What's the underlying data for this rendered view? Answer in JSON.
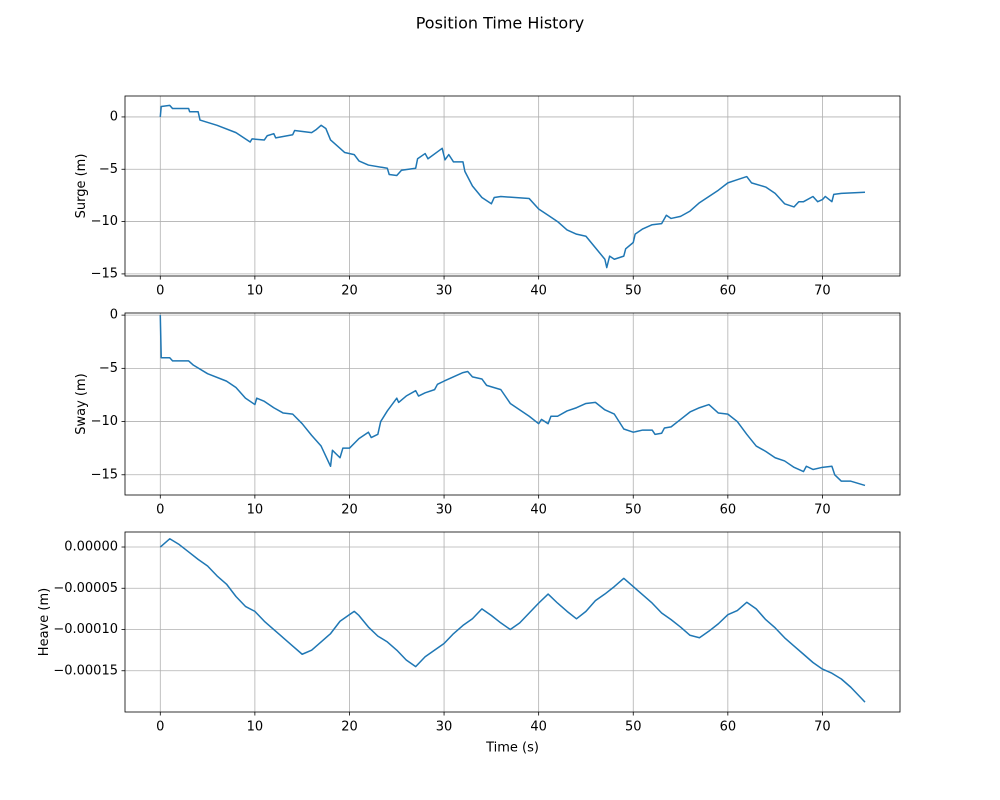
{
  "title": "Position Time History",
  "chart_data": [
    {
      "type": "line",
      "ylabel": "Surge (m)",
      "color": "#1f77b4",
      "grid": true,
      "xlim": [
        -3.73,
        78.2
      ],
      "ylim": [
        -15.2,
        2.0
      ],
      "xticks": [
        0,
        10,
        20,
        30,
        40,
        50,
        60,
        70
      ],
      "yticks": [
        0,
        {
          "value": -5,
          "label": "−5"
        },
        {
          "value": -10,
          "label": "−10"
        },
        {
          "value": -15,
          "label": "−15"
        }
      ],
      "x": [
        0,
        0.1,
        1,
        1.3,
        3,
        3.1,
        4,
        4.2,
        6,
        8,
        9.5,
        9.7,
        11,
        11.3,
        12,
        12.2,
        14,
        14.2,
        16,
        16.5,
        17,
        17.5,
        18,
        19,
        19.5,
        20.5,
        21,
        22,
        24,
        24.2,
        25,
        25.5,
        27,
        27.2,
        28,
        28.3,
        29.5,
        29.8,
        30.1,
        30.5,
        31,
        32,
        32.2,
        33,
        34,
        35,
        35.3,
        36,
        39,
        40,
        41,
        42,
        43,
        44,
        45,
        46,
        47,
        47.2,
        47.5,
        48,
        49,
        49.2,
        50,
        50.2,
        51,
        52,
        53,
        53.5,
        54,
        55,
        56,
        57,
        58,
        59,
        60,
        61,
        62,
        62.5,
        64,
        65,
        66,
        67,
        67.5,
        68,
        69,
        69.5,
        70,
        70.3,
        71,
        71.2,
        72,
        74.5
      ],
      "values": [
        0,
        1,
        1.1,
        0.8,
        0.8,
        0.5,
        0.5,
        -0.3,
        -0.8,
        -1.5,
        -2.4,
        -2.1,
        -2.2,
        -1.8,
        -1.6,
        -2.0,
        -1.7,
        -1.3,
        -1.5,
        -1.2,
        -0.8,
        -1.1,
        -2.2,
        -3.0,
        -3.4,
        -3.6,
        -4.2,
        -4.6,
        -4.9,
        -5.5,
        -5.6,
        -5.1,
        -4.9,
        -4.0,
        -3.5,
        -4.0,
        -3.2,
        -3.0,
        -4.1,
        -3.6,
        -4.3,
        -4.3,
        -5.2,
        -6.6,
        -7.7,
        -8.3,
        -7.7,
        -7.6,
        -7.8,
        -8.8,
        -9.4,
        -10.0,
        -10.8,
        -11.2,
        -11.4,
        -12.5,
        -13.6,
        -14.4,
        -13.3,
        -13.6,
        -13.3,
        -12.6,
        -12.0,
        -11.2,
        -10.7,
        -10.3,
        -10.2,
        -9.4,
        -9.7,
        -9.5,
        -9.0,
        -8.2,
        -7.6,
        -7.0,
        -6.3,
        -6.0,
        -5.7,
        -6.3,
        -6.7,
        -7.3,
        -8.3,
        -8.6,
        -8.1,
        -8.1,
        -7.6,
        -8.1,
        -7.9,
        -7.6,
        -8.1,
        -7.4,
        -7.3,
        -7.2
      ]
    },
    {
      "type": "line",
      "ylabel": "Sway (m)",
      "color": "#1f77b4",
      "grid": true,
      "xlim": [
        -3.73,
        78.2
      ],
      "ylim": [
        -16.9,
        0.2
      ],
      "xticks": [
        0,
        10,
        20,
        30,
        40,
        50,
        60,
        70
      ],
      "yticks": [
        0,
        {
          "value": -5,
          "label": "−5"
        },
        {
          "value": -10,
          "label": "−10"
        },
        {
          "value": -15,
          "label": "−15"
        }
      ],
      "x": [
        0,
        0.1,
        1,
        1.3,
        3,
        3.5,
        5,
        7,
        8,
        9,
        10,
        10.2,
        11,
        12,
        13,
        14,
        15,
        16,
        17,
        18,
        18.2,
        19,
        19.3,
        20,
        21,
        22,
        22.3,
        23,
        23.3,
        24,
        25,
        25.2,
        26,
        27,
        27.3,
        28,
        29,
        29.3,
        30,
        31,
        32,
        32.5,
        33,
        34,
        34.5,
        36,
        37,
        38,
        39,
        40,
        40.3,
        41,
        41.3,
        42,
        43,
        44,
        45,
        46,
        47,
        48,
        49,
        50,
        51,
        52,
        52.3,
        53,
        53.3,
        54,
        55,
        56,
        57,
        58,
        59,
        60,
        61,
        62,
        63,
        64,
        65,
        66,
        67,
        68,
        68.3,
        69,
        70,
        71,
        71.3,
        72,
        73,
        74.5
      ],
      "values": [
        0,
        -4.0,
        -4.0,
        -4.3,
        -4.3,
        -4.7,
        -5.5,
        -6.2,
        -6.8,
        -7.8,
        -8.4,
        -7.8,
        -8.1,
        -8.7,
        -9.2,
        -9.3,
        -10.2,
        -11.3,
        -12.3,
        -14.2,
        -12.7,
        -13.4,
        -12.5,
        -12.5,
        -11.6,
        -11.0,
        -11.5,
        -11.2,
        -10.0,
        -9.0,
        -7.8,
        -8.2,
        -7.6,
        -7.1,
        -7.6,
        -7.3,
        -7.0,
        -6.5,
        -6.2,
        -5.8,
        -5.4,
        -5.3,
        -5.8,
        -6.0,
        -6.6,
        -7.0,
        -8.3,
        -8.9,
        -9.5,
        -10.2,
        -9.8,
        -10.2,
        -9.5,
        -9.5,
        -9.0,
        -8.7,
        -8.3,
        -8.2,
        -8.9,
        -9.3,
        -10.7,
        -11.0,
        -10.8,
        -10.8,
        -11.2,
        -11.1,
        -10.6,
        -10.5,
        -9.8,
        -9.1,
        -8.7,
        -8.4,
        -9.2,
        -9.3,
        -10.0,
        -11.2,
        -12.3,
        -12.8,
        -13.4,
        -13.7,
        -14.3,
        -14.7,
        -14.2,
        -14.5,
        -14.3,
        -14.2,
        -15.0,
        -15.6,
        -15.6,
        -16.0
      ]
    },
    {
      "type": "line",
      "ylabel": "Heave (m)",
      "xlabel": "Time (s)",
      "color": "#1f77b4",
      "grid": true,
      "xlim": [
        -3.73,
        78.2
      ],
      "ylim": [
        -0.0002,
        1.82e-05
      ],
      "xticks": [
        0,
        10,
        20,
        30,
        40,
        50,
        60,
        70
      ],
      "yticks": [
        {
          "value": 0,
          "label": "0.00000"
        },
        {
          "value": -5e-05,
          "label": "−0.00005"
        },
        {
          "value": -0.0001,
          "label": "−0.00010"
        },
        {
          "value": -0.00015,
          "label": "−0.00015"
        }
      ],
      "x": [
        0,
        1,
        2,
        3,
        4,
        5,
        6,
        7,
        8,
        9,
        10,
        11,
        12,
        13,
        14,
        15,
        16,
        17,
        18,
        19,
        20,
        20.5,
        21,
        22,
        23,
        24,
        25,
        26,
        27,
        28,
        29,
        30,
        31,
        32,
        33,
        34,
        35,
        36,
        37,
        38,
        39,
        40,
        41,
        42,
        43,
        44,
        45,
        46,
        47,
        48,
        49,
        50,
        51,
        52,
        53,
        54,
        55,
        56,
        57,
        58,
        59,
        60,
        61,
        62,
        63,
        64,
        65,
        66,
        67,
        68,
        69,
        70,
        71,
        72,
        73,
        74,
        74.5
      ],
      "values": [
        0,
        1e-05,
        3e-06,
        -6e-06,
        -1.5e-05,
        -2.3e-05,
        -3.5e-05,
        -4.5e-05,
        -6e-05,
        -7.2e-05,
        -7.8e-05,
        -9e-05,
        -0.0001,
        -0.00011,
        -0.00012,
        -0.00013,
        -0.000125,
        -0.000115,
        -0.000105,
        -9e-05,
        -8.2e-05,
        -7.8e-05,
        -8.3e-05,
        -9.7e-05,
        -0.000108,
        -0.000115,
        -0.000125,
        -0.000137,
        -0.000145,
        -0.000133,
        -0.000125,
        -0.000117,
        -0.000105,
        -9.5e-05,
        -8.7e-05,
        -7.5e-05,
        -8.3e-05,
        -9.2e-05,
        -0.0001,
        -9.2e-05,
        -8e-05,
        -6.8e-05,
        -5.7e-05,
        -6.8e-05,
        -7.8e-05,
        -8.7e-05,
        -7.8e-05,
        -6.5e-05,
        -5.7e-05,
        -4.8e-05,
        -3.8e-05,
        -4.8e-05,
        -5.8e-05,
        -6.8e-05,
        -8e-05,
        -8.8e-05,
        -9.7e-05,
        -0.000107,
        -0.00011,
        -0.000102,
        -9.3e-05,
        -8.2e-05,
        -7.7e-05,
        -6.7e-05,
        -7.5e-05,
        -8.8e-05,
        -9.8e-05,
        -0.00011,
        -0.00012,
        -0.00013,
        -0.00014,
        -0.000148,
        -0.000153,
        -0.00016,
        -0.00017,
        -0.000182,
        -0.000188
      ]
    }
  ]
}
